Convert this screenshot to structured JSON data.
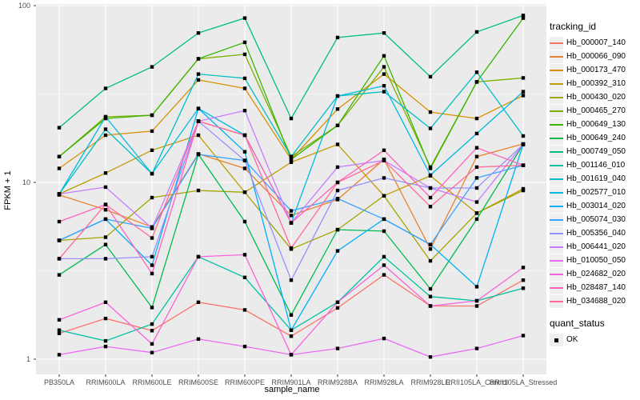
{
  "figure": {
    "y_axis_title": "FPKM + 1",
    "x_axis_title": "sample_name",
    "legend": {
      "tracking_title": "tracking_id",
      "quant_title": "quant_status",
      "quant_ok_label": "OK"
    },
    "colors": {
      "panel_bg": "#EBEBEB",
      "grid": "#FFFFFF",
      "axis_text": "#4D4D4D",
      "point": "#000000",
      "legend_key_bg": "#EFEFEF"
    }
  },
  "chart_data": {
    "type": "line",
    "title": "",
    "xlabel": "sample_name",
    "ylabel": "FPKM + 1",
    "y_scale": "log10",
    "ylim": [
      1,
      100
    ],
    "y_ticks": [
      1,
      10,
      100
    ],
    "grid": true,
    "legend_position": "right",
    "point_shape": "filled-black-square",
    "point_legend": {
      "title": "quant_status",
      "entries": [
        {
          "label": "OK"
        }
      ]
    },
    "categories": [
      "PB350LA",
      "RRIM600LA",
      "RRIM600LE",
      "RRIM600SE",
      "RRIM600PE",
      "RRIM901LA",
      "RRIM928BA",
      "RRIM928LA",
      "RRIM928LE",
      "RRII105LA_Control",
      "RRII105LA_Stressed"
    ],
    "series": [
      {
        "name": "Hb_000007_140",
        "color": "#F8766D",
        "values": [
          1.4,
          1.7,
          1.45,
          2.1,
          1.9,
          1.35,
          1.95,
          3.0,
          2.0,
          2.0,
          2.8
        ]
      },
      {
        "name": "Hb_000066_090",
        "color": "#EA8331",
        "values": [
          8.5,
          7.0,
          5.6,
          14.5,
          12.0,
          6.5,
          8.0,
          13.5,
          4.2,
          14.0,
          16.5
        ]
      },
      {
        "name": "Hb_000173_470",
        "color": "#D89000",
        "values": [
          12.0,
          18.5,
          19.5,
          38.0,
          34.0,
          13.5,
          26.0,
          41.0,
          25.0,
          23.0,
          31.0
        ]
      },
      {
        "name": "Hb_000392_310",
        "color": "#C09B00",
        "values": [
          8.6,
          11.3,
          15.2,
          18.5,
          8.8,
          13.0,
          16.4,
          8.4,
          10.9,
          6.7,
          9.2
        ]
      },
      {
        "name": "Hb_000430_020",
        "color": "#A3A500",
        "values": [
          4.7,
          4.9,
          8.2,
          9.0,
          8.8,
          4.2,
          5.4,
          8.4,
          3.6,
          6.7,
          9.0
        ]
      },
      {
        "name": "Hb_000465_270",
        "color": "#7CAE00",
        "values": [
          14.0,
          23.5,
          24.0,
          50.0,
          53.0,
          14.0,
          21.0,
          45.0,
          12.2,
          37.0,
          39.0
        ]
      },
      {
        "name": "Hb_000649_130",
        "color": "#39B600",
        "values": [
          14.0,
          23.0,
          24.0,
          50.0,
          62.0,
          13.5,
          21.0,
          52.0,
          12.0,
          37.0,
          85.0
        ]
      },
      {
        "name": "Hb_000649_240",
        "color": "#00BB4E",
        "values": [
          3.0,
          4.45,
          1.96,
          14.4,
          6.0,
          1.78,
          5.4,
          5.3,
          2.5,
          6.2,
          16.4
        ]
      },
      {
        "name": "Hb_000749_050",
        "color": "#00BF7D",
        "values": [
          20.4,
          34.0,
          45.0,
          70.0,
          85.0,
          23.0,
          66.0,
          70.0,
          39.6,
          71.0,
          88.0
        ]
      },
      {
        "name": "Hb_001146_010",
        "color": "#00C1A3",
        "values": [
          1.46,
          1.27,
          1.58,
          3.8,
          2.9,
          1.46,
          2.1,
          3.8,
          2.26,
          2.14,
          2.52
        ]
      },
      {
        "name": "Hb_001619_040",
        "color": "#00BFC4",
        "values": [
          8.6,
          20.0,
          11.2,
          41.0,
          38.8,
          14.0,
          30.8,
          32.6,
          20.2,
          42.0,
          18.3
        ]
      },
      {
        "name": "Hb_002577_010",
        "color": "#00BAE0",
        "values": [
          8.6,
          23.5,
          11.2,
          26.2,
          18.5,
          5.9,
          30.8,
          35.2,
          11.0,
          18.9,
          32.6
        ]
      },
      {
        "name": "Hb_003014_020",
        "color": "#00B0F6",
        "values": [
          4.7,
          6.2,
          3.4,
          26.2,
          14.9,
          1.46,
          4.1,
          6.2,
          4.45,
          2.57,
          16.4
        ]
      },
      {
        "name": "Hb_005074_030",
        "color": "#35A2FF",
        "values": [
          4.7,
          6.2,
          5.5,
          14.4,
          13.3,
          6.9,
          8.1,
          6.2,
          4.45,
          10.6,
          12.5
        ]
      },
      {
        "name": "Hb_005356_040",
        "color": "#9590FF",
        "values": [
          3.7,
          3.7,
          3.8,
          22.2,
          13.3,
          2.8,
          9.0,
          10.6,
          9.3,
          9.3,
          16.4
        ]
      },
      {
        "name": "Hb_006441_020",
        "color": "#C77CFF",
        "values": [
          8.6,
          9.4,
          5.5,
          22.2,
          25.5,
          5.9,
          12.2,
          13.3,
          9.3,
          7.75,
          16.4
        ]
      },
      {
        "name": "Hb_010050_050",
        "color": "#E76BF3",
        "values": [
          1.06,
          1.18,
          1.09,
          1.3,
          1.18,
          1.06,
          1.15,
          1.31,
          1.03,
          1.15,
          1.36
        ]
      },
      {
        "name": "Hb_024682_020",
        "color": "#FA62DB",
        "values": [
          1.67,
          2.1,
          1.22,
          3.8,
          3.9,
          1.06,
          2.1,
          3.4,
          2.0,
          2.14,
          3.3
        ]
      },
      {
        "name": "Hb_028487_140",
        "color": "#FF62BC",
        "values": [
          6.0,
          7.5,
          3.05,
          22.2,
          18.5,
          5.9,
          10.0,
          15.2,
          8.2,
          15.7,
          12.5
        ]
      },
      {
        "name": "Hb_034688_020",
        "color": "#FF6A98",
        "values": [
          3.7,
          7.5,
          4.85,
          22.2,
          18.5,
          4.25,
          10.0,
          13.3,
          7.3,
          12.2,
          12.5
        ]
      }
    ]
  }
}
